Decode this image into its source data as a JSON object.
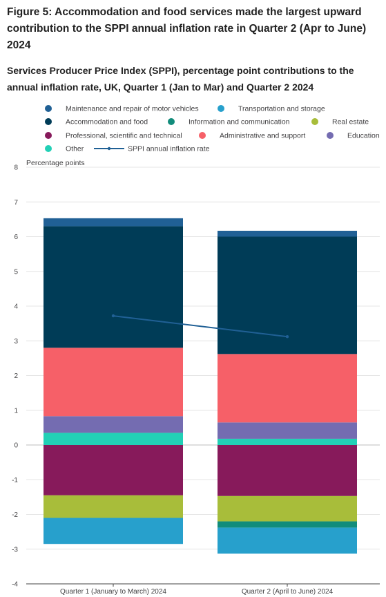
{
  "figure": {
    "title": "Figure 5: Accommodation and food services made the largest upward contribution to the SPPI annual inflation rate in Quarter 2 (Apr to June) 2024",
    "subtitle": "Services Producer Price Index (SPPI), percentage point contributions to the annual inflation rate, UK, Quarter 1 (Jan to Mar) and Quarter 2 2024"
  },
  "chart_data": {
    "type": "bar",
    "stacked": true,
    "title": "",
    "ylabel": "Percentage points",
    "xlabel": "",
    "ylim": [
      -4,
      8
    ],
    "yticks": [
      8,
      7,
      6,
      5,
      4,
      3,
      2,
      1,
      0,
      -1,
      -2,
      -3,
      -4
    ],
    "grid": true,
    "legend_position": "top",
    "categories": [
      "Quarter 1 (January to March) 2024",
      "Quarter 2 (April to June) 2024"
    ],
    "series": [
      {
        "name": "Maintenance and repair of motor vehicles",
        "color": "#206095",
        "values": [
          0.23,
          0.17
        ]
      },
      {
        "name": "Transportation and storage",
        "color": "#27a0cc",
        "values": [
          -0.75,
          -0.75
        ]
      },
      {
        "name": "Accommodation and food",
        "color": "#003c57",
        "values": [
          3.5,
          3.38
        ]
      },
      {
        "name": "Information and communication",
        "color": "#118c7b",
        "values": [
          0.0,
          -0.18
        ]
      },
      {
        "name": "Real estate",
        "color": "#a8bd3a",
        "values": [
          -0.65,
          -0.73
        ]
      },
      {
        "name": "Professional, scientific and technical",
        "color": "#871a5b",
        "values": [
          -1.45,
          -1.47
        ]
      },
      {
        "name": "Administrative and support",
        "color": "#f66068",
        "values": [
          1.97,
          1.97
        ]
      },
      {
        "name": "Education",
        "color": "#746cb1",
        "values": [
          0.48,
          0.47
        ]
      },
      {
        "name": "Other",
        "color": "#22d0b6",
        "values": [
          0.35,
          0.18
        ]
      }
    ],
    "line": {
      "name": "SPPI annual inflation rate",
      "color": "#206095",
      "values": [
        3.72,
        3.12
      ]
    },
    "stack_order_positive": [
      "Other",
      "Education",
      "Administrative and support",
      "Information and communication",
      "Accommodation and food",
      "Maintenance and repair of motor vehicles"
    ],
    "stack_order_negative": [
      "Professional, scientific and technical",
      "Real estate",
      "Information and communication",
      "Transportation and storage"
    ],
    "legend_order": [
      "Maintenance and repair of motor vehicles",
      "Transportation and storage",
      "Accommodation and food",
      "Information and communication",
      "Real estate",
      "Professional, scientific and technical",
      "Administrative and support",
      "Education",
      "Other",
      "SPPI annual inflation rate"
    ]
  }
}
